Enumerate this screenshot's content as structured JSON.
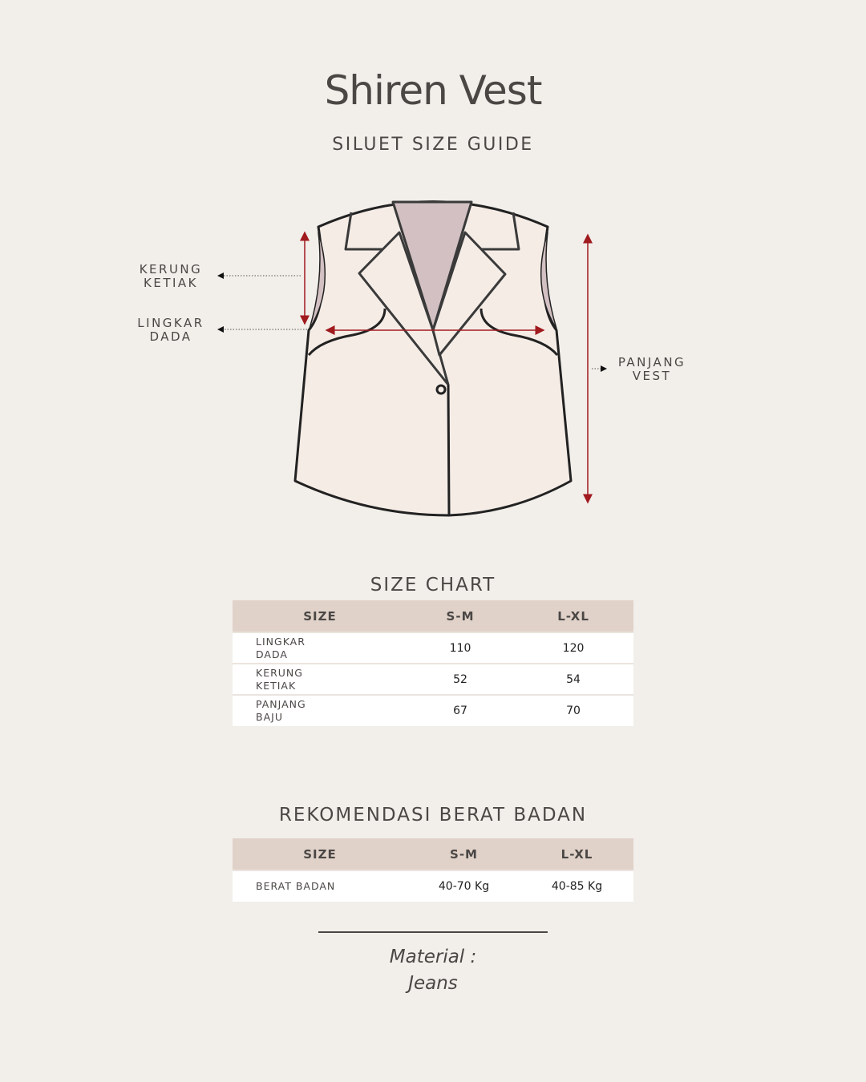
{
  "title": "Shiren Vest",
  "subtitle": "SILUET SIZE GUIDE",
  "diagram": {
    "labels": {
      "kerung_ketiak": [
        "KERUNG",
        "KETIAK"
      ],
      "lingkar_dada": [
        "LINGKAR",
        "DADA"
      ],
      "panjang_vest": [
        "PANJANG",
        "VEST"
      ]
    },
    "colors": {
      "fabric": "#f5ece6",
      "collar_inner": "#d2c0c2",
      "outline": "#222222",
      "arrow": "#a01a1e"
    }
  },
  "size_chart": {
    "title": "SIZE CHART",
    "headers": [
      "SIZE",
      "S-M",
      "L-XL"
    ],
    "rows": [
      {
        "name": [
          "LINGKAR",
          "DADA"
        ],
        "sm": "110",
        "lxl": "120"
      },
      {
        "name": [
          "KERUNG",
          "KETIAK"
        ],
        "sm": "52",
        "lxl": "54"
      },
      {
        "name": [
          "PANJANG",
          "BAJU"
        ],
        "sm": "67",
        "lxl": "70"
      }
    ]
  },
  "weight": {
    "title": "REKOMENDASI BERAT BADAN",
    "headers": [
      "SIZE",
      "S-M",
      "L-XL"
    ],
    "rows": [
      {
        "name": "BERAT BADAN",
        "sm": "40-70 Kg",
        "lxl": "40-85 Kg"
      }
    ]
  },
  "material": {
    "label": "Material :",
    "value": "Jeans"
  }
}
